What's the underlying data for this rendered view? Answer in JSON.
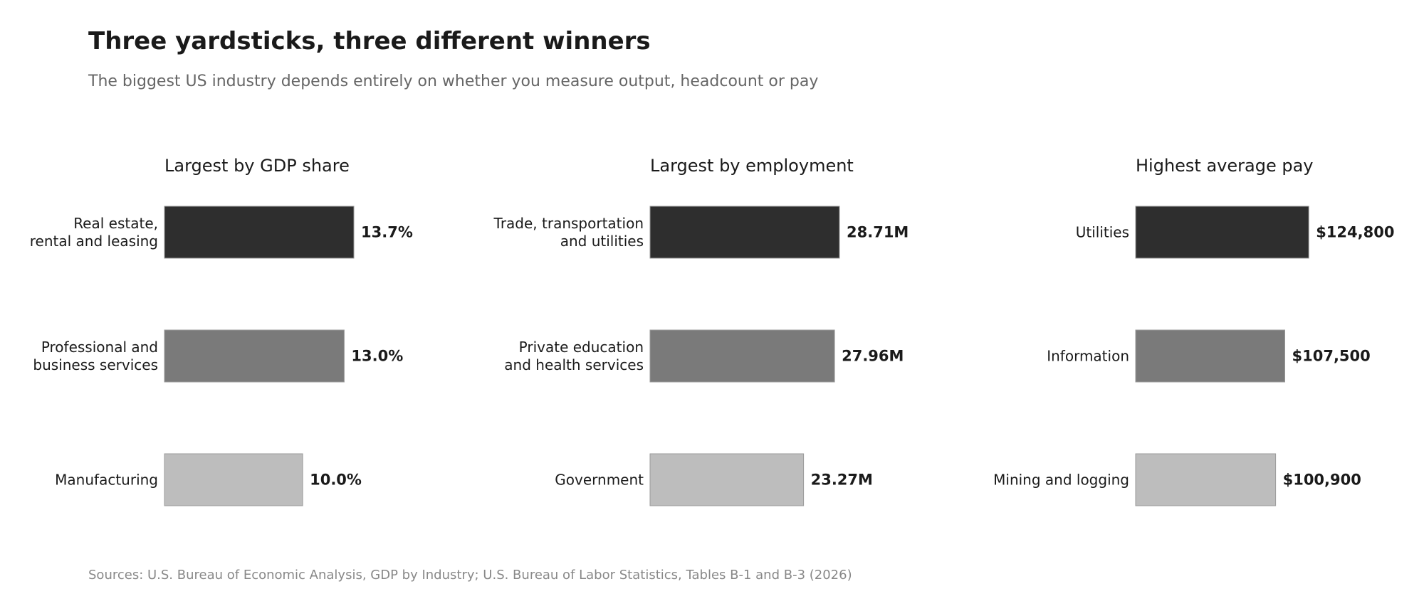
{
  "header": {
    "title": "Three yardsticks, three different winners",
    "subtitle": "The biggest US industry depends entirely on whether you measure output, headcount or pay"
  },
  "footer": {
    "source": "Sources: U.S. Bureau of Economic Analysis, GDP by Industry; U.S. Bureau of Labor Statistics, Tables B-1 and B-3 (2026)"
  },
  "colors": {
    "rank1": "#2e2e2e",
    "rank2": "#7a7a7a",
    "rank3": "#bdbdbd",
    "bar_edge": "#9a9a9a"
  },
  "chart_data": [
    {
      "type": "bar",
      "orientation": "horizontal",
      "title": "Largest by GDP share",
      "categories": [
        [
          "Real estate,",
          "rental and leasing"
        ],
        [
          "Professional and",
          "business services"
        ],
        [
          "Manufacturing"
        ]
      ],
      "values": [
        13.7,
        13.0,
        10.0
      ],
      "value_labels": [
        "13.7%",
        "13.0%",
        "10.0%"
      ],
      "xlim": [
        0,
        27.3
      ]
    },
    {
      "type": "bar",
      "orientation": "horizontal",
      "title": "Largest by employment",
      "categories": [
        [
          "Trade, transportation",
          "and utilities"
        ],
        [
          "Private education",
          "and health services"
        ],
        [
          "Government"
        ]
      ],
      "values": [
        28.71,
        27.96,
        23.27
      ],
      "value_labels": [
        "28.71M",
        "27.96M",
        "23.27M"
      ],
      "xlim": [
        0,
        57.2
      ]
    },
    {
      "type": "bar",
      "orientation": "horizontal",
      "title": "Highest average pay",
      "categories": [
        [
          "Utilities"
        ],
        [
          "Information"
        ],
        [
          "Mining and logging"
        ]
      ],
      "values": [
        124800,
        107500,
        100900
      ],
      "value_labels": [
        "$124,800",
        "$107,500",
        "$100,900"
      ],
      "xlim": [
        0,
        272000
      ]
    }
  ]
}
